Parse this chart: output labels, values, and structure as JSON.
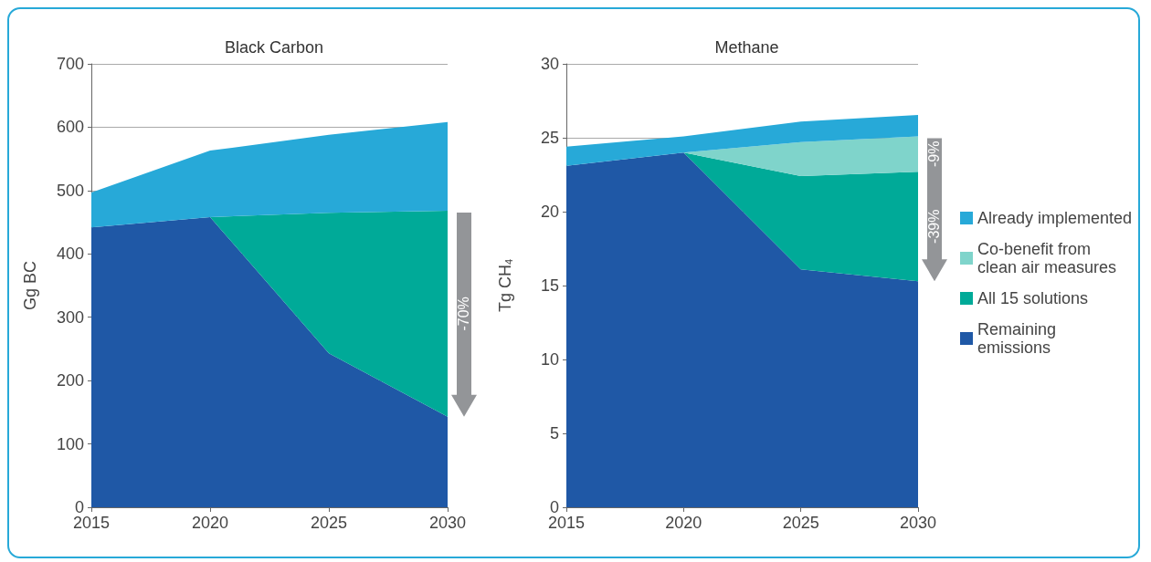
{
  "chart_data": [
    {
      "type": "area",
      "stacked": true,
      "title": "Black Carbon",
      "ylabel": "Gg BC",
      "categories": [
        "2015",
        "2020",
        "2025",
        "2030"
      ],
      "ylim": [
        0,
        700
      ],
      "yticks": [
        0,
        100,
        200,
        300,
        400,
        500,
        600,
        700
      ],
      "grid": "y",
      "legend": false,
      "annotations": [
        "-70%"
      ],
      "series": [
        {
          "color": "#1f58a6",
          "values": [
            442,
            458,
            243,
            143
          ]
        },
        {
          "color": "#00aa98",
          "values": [
            0,
            0,
            222,
            325
          ]
        },
        {
          "color": "#27a9d8",
          "values": [
            55,
            105,
            123,
            140
          ]
        }
      ]
    },
    {
      "type": "area",
      "stacked": true,
      "title": "Methane",
      "ylabel": "Tg CH$_{4}$",
      "categories": [
        "2015",
        "2020",
        "2025",
        "2030"
      ],
      "ylim": [
        0,
        30
      ],
      "yticks": [
        0,
        5,
        10,
        15,
        20,
        25,
        30
      ],
      "grid": "y",
      "legend": "right",
      "annotations": [
        "-39%",
        "-9%"
      ],
      "series": [
        {
          "name": "Remaining emissions",
          "color": "#1f58a6",
          "values": [
            23.1,
            24.0,
            16.1,
            15.3
          ]
        },
        {
          "name": "All 15 solutions",
          "color": "#00aa98",
          "values": [
            0,
            0,
            6.3,
            7.4
          ]
        },
        {
          "name": "Co-benefit from clean air measures",
          "color": "#7fd4cb",
          "values": [
            0,
            0,
            2.3,
            2.4
          ]
        },
        {
          "name": "Already implemented",
          "color": "#27a9d8",
          "values": [
            1.3,
            1.1,
            1.4,
            1.45
          ]
        }
      ]
    }
  ]
}
